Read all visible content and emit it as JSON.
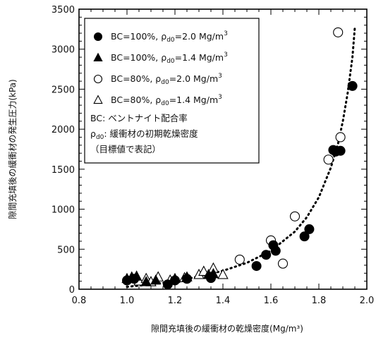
{
  "chart_data": {
    "type": "scatter",
    "xlabel": "隙間充填後の緩衝材の乾燥密度(Mg/m³)",
    "ylabel": "隙間充填後の緩衝材の発生圧力(kPa)",
    "xlim": [
      0.8,
      2.0
    ],
    "ylim": [
      0,
      3500
    ],
    "x_ticks": [
      "0.8",
      "1.0",
      "1.2",
      "1.4",
      "1.6",
      "1.8",
      "2.0"
    ],
    "y_ticks": [
      "0",
      "500",
      "1000",
      "1500",
      "2000",
      "2500",
      "3000",
      "3500"
    ],
    "grid": false,
    "legend_position": "top-left",
    "series": [
      {
        "legend": {
          "prefix": "BC=100%, ",
          "rho": "ρ",
          "rho_sub": "d0",
          "value": "=2.0 Mg/m",
          "sup": "3"
        },
        "marker": "filled-circle",
        "points": [
          [
            1.0,
            110
          ],
          [
            1.03,
            130
          ],
          [
            1.17,
            60
          ],
          [
            1.2,
            110
          ],
          [
            1.25,
            130
          ],
          [
            1.35,
            140
          ],
          [
            1.54,
            290
          ],
          [
            1.58,
            430
          ],
          [
            1.61,
            550
          ],
          [
            1.62,
            480
          ],
          [
            1.74,
            660
          ],
          [
            1.76,
            750
          ],
          [
            1.86,
            1740
          ],
          [
            1.87,
            1720
          ],
          [
            1.89,
            1730
          ],
          [
            1.94,
            2540
          ]
        ]
      },
      {
        "legend": {
          "prefix": "BC=100%, ",
          "rho": "ρ",
          "rho_sub": "d0",
          "value": "=1.4 Mg/m",
          "sup": "3"
        },
        "marker": "filled-triangle",
        "points": [
          [
            1.0,
            130
          ],
          [
            1.02,
            150
          ],
          [
            1.04,
            160
          ],
          [
            1.08,
            90
          ],
          [
            1.12,
            110
          ],
          [
            1.2,
            130
          ],
          [
            1.25,
            150
          ],
          [
            1.34,
            180
          ],
          [
            1.36,
            190
          ]
        ]
      },
      {
        "legend": {
          "prefix": "BC=80%, ",
          "rho": "ρ",
          "rho_sub": "d0",
          "value": "=2.0 Mg/m",
          "sup": "3"
        },
        "marker": "open-circle",
        "points": [
          [
            1.47,
            370
          ],
          [
            1.6,
            610
          ],
          [
            1.65,
            320
          ],
          [
            1.7,
            910
          ],
          [
            1.84,
            1620
          ],
          [
            1.89,
            1900
          ],
          [
            1.88,
            3210
          ]
        ]
      },
      {
        "legend": {
          "prefix": "BC=80%, ",
          "rho": "ρ",
          "rho_sub": "d0",
          "value": "=1.4 Mg/m",
          "sup": "3"
        },
        "marker": "open-triangle",
        "points": [
          [
            1.05,
            100
          ],
          [
            1.08,
            130
          ],
          [
            1.1,
            90
          ],
          [
            1.13,
            150
          ],
          [
            1.18,
            110
          ],
          [
            1.24,
            140
          ],
          [
            1.3,
            180
          ],
          [
            1.32,
            220
          ],
          [
            1.36,
            260
          ],
          [
            1.4,
            180
          ]
        ]
      }
    ],
    "trend_line": {
      "style": "dotted",
      "points": [
        [
          1.0,
          30
        ],
        [
          1.1,
          60
        ],
        [
          1.2,
          100
        ],
        [
          1.3,
          160
        ],
        [
          1.4,
          230
        ],
        [
          1.5,
          330
        ],
        [
          1.6,
          480
        ],
        [
          1.7,
          720
        ],
        [
          1.75,
          900
        ],
        [
          1.8,
          1150
        ],
        [
          1.85,
          1520
        ],
        [
          1.88,
          1820
        ],
        [
          1.9,
          2100
        ],
        [
          1.92,
          2450
        ],
        [
          1.94,
          2900
        ],
        [
          1.95,
          3270
        ]
      ]
    },
    "notes": [
      {
        "line": "BC: ベントナイト配合率"
      },
      {
        "rho": "ρ",
        "rho_sub": "d0",
        "text": ": 緩衝材の初期乾燥密度"
      },
      {
        "line": "（目標値で表記）"
      }
    ],
    "colors": {
      "markers": "#000000",
      "trend": "#000000",
      "axes": "#000000"
    }
  }
}
